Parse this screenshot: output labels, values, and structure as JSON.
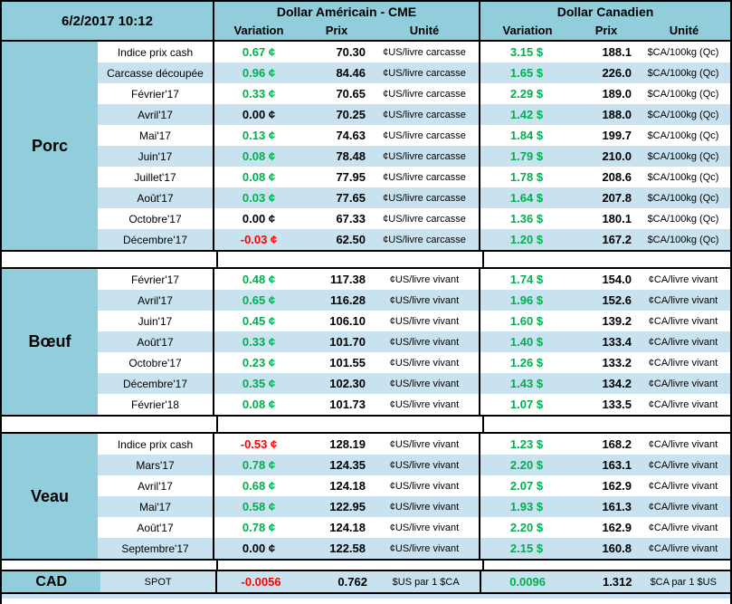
{
  "window": {
    "timestamp": "6/2/2017 10:12"
  },
  "colors": {
    "header_blue": "#92CDDC",
    "band_blue": "#C8E2EF",
    "positive_green": "#00B050",
    "negative_red": "#FF0000",
    "border_black": "#000000"
  },
  "table": {
    "currency_headers": {
      "us": "Dollar Américain - CME",
      "ca": "Dollar Canadien"
    },
    "column_headers": {
      "variation": "Variation",
      "prix": "Prix",
      "unite": "Unité"
    },
    "sections": [
      {
        "id": "porc",
        "label": "Porc",
        "rows": [
          {
            "label": "Indice prix cash",
            "us": {
              "variation": "0.67 ¢",
              "prix": "70.30",
              "unite": "¢US/livre carcasse"
            },
            "ca": {
              "variation": "3.15 $",
              "prix": "188.1",
              "unite": "$CA/100kg (Qc)"
            }
          },
          {
            "label": "Carcasse découpée",
            "us": {
              "variation": "0.96 ¢",
              "prix": "84.46",
              "unite": "¢US/livre carcasse"
            },
            "ca": {
              "variation": "1.65 $",
              "prix": "226.0",
              "unite": "$CA/100kg (Qc)"
            }
          },
          {
            "label": "Février'17",
            "us": {
              "variation": "0.33 ¢",
              "prix": "70.65",
              "unite": "¢US/livre carcasse"
            },
            "ca": {
              "variation": "2.29 $",
              "prix": "189.0",
              "unite": "$CA/100kg (Qc)"
            }
          },
          {
            "label": "Avril'17",
            "us": {
              "variation": "0.00 ¢",
              "prix": "70.25",
              "unite": "¢US/livre carcasse"
            },
            "ca": {
              "variation": "1.42 $",
              "prix": "188.0",
              "unite": "$CA/100kg (Qc)"
            }
          },
          {
            "label": "Mai'17",
            "us": {
              "variation": "0.13 ¢",
              "prix": "74.63",
              "unite": "¢US/livre carcasse"
            },
            "ca": {
              "variation": "1.84 $",
              "prix": "199.7",
              "unite": "$CA/100kg (Qc)"
            }
          },
          {
            "label": "Juin'17",
            "us": {
              "variation": "0.08 ¢",
              "prix": "78.48",
              "unite": "¢US/livre carcasse"
            },
            "ca": {
              "variation": "1.79 $",
              "prix": "210.0",
              "unite": "$CA/100kg (Qc)"
            }
          },
          {
            "label": "Juillet'17",
            "us": {
              "variation": "0.08 ¢",
              "prix": "77.95",
              "unite": "¢US/livre carcasse"
            },
            "ca": {
              "variation": "1.78 $",
              "prix": "208.6",
              "unite": "$CA/100kg (Qc)"
            }
          },
          {
            "label": "Août'17",
            "us": {
              "variation": "0.03 ¢",
              "prix": "77.65",
              "unite": "¢US/livre carcasse"
            },
            "ca": {
              "variation": "1.64 $",
              "prix": "207.8",
              "unite": "$CA/100kg (Qc)"
            }
          },
          {
            "label": "Octobre'17",
            "us": {
              "variation": "0.00 ¢",
              "prix": "67.33",
              "unite": "¢US/livre carcasse"
            },
            "ca": {
              "variation": "1.36 $",
              "prix": "180.1",
              "unite": "$CA/100kg (Qc)"
            }
          },
          {
            "label": "Décembre'17",
            "us": {
              "variation": "-0.03 ¢",
              "prix": "62.50",
              "unite": "¢US/livre carcasse"
            },
            "ca": {
              "variation": "1.20 $",
              "prix": "167.2",
              "unite": "$CA/100kg (Qc)"
            }
          }
        ]
      },
      {
        "id": "boeuf",
        "label": "Bœuf",
        "rows": [
          {
            "label": "Février'17",
            "us": {
              "variation": "0.48 ¢",
              "prix": "117.38",
              "unite": "¢US/livre vivant"
            },
            "ca": {
              "variation": "1.74 $",
              "prix": "154.0",
              "unite": "¢CA/livre vivant"
            }
          },
          {
            "label": "Avril'17",
            "us": {
              "variation": "0.65 ¢",
              "prix": "116.28",
              "unite": "¢US/livre vivant"
            },
            "ca": {
              "variation": "1.96 $",
              "prix": "152.6",
              "unite": "¢CA/livre vivant"
            }
          },
          {
            "label": "Juin'17",
            "us": {
              "variation": "0.45 ¢",
              "prix": "106.10",
              "unite": "¢US/livre vivant"
            },
            "ca": {
              "variation": "1.60 $",
              "prix": "139.2",
              "unite": "¢CA/livre vivant"
            }
          },
          {
            "label": "Août'17",
            "us": {
              "variation": "0.33 ¢",
              "prix": "101.70",
              "unite": "¢US/livre vivant"
            },
            "ca": {
              "variation": "1.40 $",
              "prix": "133.4",
              "unite": "¢CA/livre vivant"
            }
          },
          {
            "label": "Octobre'17",
            "us": {
              "variation": "0.23 ¢",
              "prix": "101.55",
              "unite": "¢US/livre vivant"
            },
            "ca": {
              "variation": "1.26 $",
              "prix": "133.2",
              "unite": "¢CA/livre vivant"
            }
          },
          {
            "label": "Décembre'17",
            "us": {
              "variation": "0.35 ¢",
              "prix": "102.30",
              "unite": "¢US/livre vivant"
            },
            "ca": {
              "variation": "1.43 $",
              "prix": "134.2",
              "unite": "¢CA/livre vivant"
            }
          },
          {
            "label": "Février'18",
            "us": {
              "variation": "0.08 ¢",
              "prix": "101.73",
              "unite": "¢US/livre vivant"
            },
            "ca": {
              "variation": "1.07 $",
              "prix": "133.5",
              "unite": "¢CA/livre vivant"
            }
          }
        ]
      },
      {
        "id": "veau",
        "label": "Veau",
        "rows": [
          {
            "label": "Indice prix cash",
            "us": {
              "variation": "-0.53 ¢",
              "prix": "128.19",
              "unite": "¢US/livre vivant"
            },
            "ca": {
              "variation": "1.23 $",
              "prix": "168.2",
              "unite": "¢CA/livre vivant"
            }
          },
          {
            "label": "Mars'17",
            "us": {
              "variation": "0.78 ¢",
              "prix": "124.35",
              "unite": "¢US/livre vivant"
            },
            "ca": {
              "variation": "2.20 $",
              "prix": "163.1",
              "unite": "¢CA/livre vivant"
            }
          },
          {
            "label": "Avril'17",
            "us": {
              "variation": "0.68 ¢",
              "prix": "124.18",
              "unite": "¢US/livre vivant"
            },
            "ca": {
              "variation": "2.07 $",
              "prix": "162.9",
              "unite": "¢CA/livre vivant"
            }
          },
          {
            "label": "Mai'17",
            "us": {
              "variation": "0.58 ¢",
              "prix": "122.95",
              "unite": "¢US/livre vivant"
            },
            "ca": {
              "variation": "1.93 $",
              "prix": "161.3",
              "unite": "¢CA/livre vivant"
            }
          },
          {
            "label": "Août'17",
            "us": {
              "variation": "0.78 ¢",
              "prix": "124.18",
              "unite": "¢US/livre vivant"
            },
            "ca": {
              "variation": "2.20 $",
              "prix": "162.9",
              "unite": "¢CA/livre vivant"
            }
          },
          {
            "label": "Septembre'17",
            "us": {
              "variation": "0.00 ¢",
              "prix": "122.58",
              "unite": "¢US/livre vivant"
            },
            "ca": {
              "variation": "2.15 $",
              "prix": "160.8",
              "unite": "¢CA/livre vivant"
            }
          }
        ]
      }
    ],
    "cad": {
      "label": "CAD",
      "row_label": "SPOT",
      "us": {
        "variation": "-0.0056",
        "prix": "0.762",
        "unite": "$US par 1 $CA"
      },
      "ca": {
        "variation": "0.0096",
        "prix": "1.312",
        "unite": "$CA par 1 $US"
      }
    }
  }
}
